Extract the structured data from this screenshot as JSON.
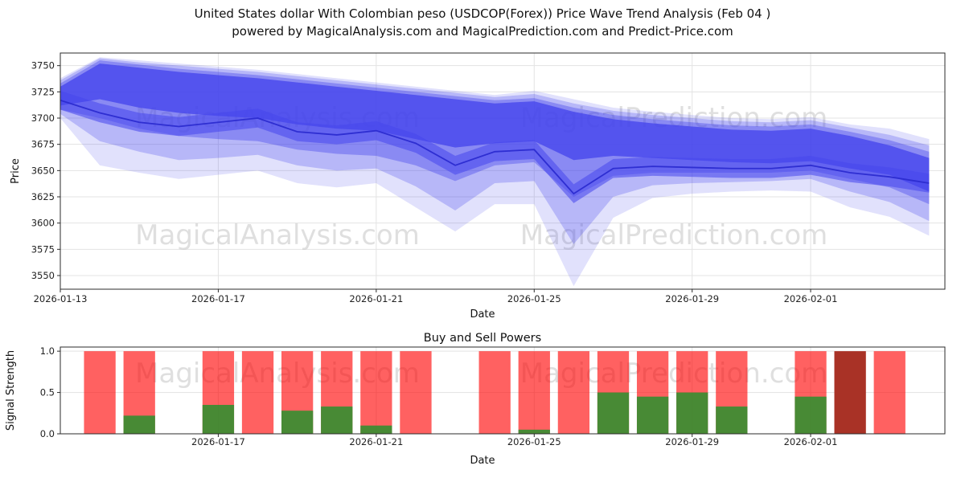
{
  "page": {
    "title_line1": "United States dollar With Colombian peso (USDCOP(Forex)) Price Wave Trend Analysis (Feb 04 )",
    "title_line2": "powered by MagicalAnalysis.com and MagicalPrediction.com and Predict-Price.com"
  },
  "watermarks": {
    "left": "MagicalAnalysis.com",
    "right": "MagicalPrediction.com"
  },
  "chart_data": [
    {
      "type": "area",
      "name": "price-wave-trend",
      "xlabel": "Date",
      "ylabel": "Price",
      "xlim_days": [
        0,
        22.4
      ],
      "ylim": [
        3537,
        3762
      ],
      "yticks": [
        3550,
        3575,
        3600,
        3625,
        3650,
        3675,
        3700,
        3725,
        3750
      ],
      "xticks": [
        "2026-01-13",
        "2026-01-17",
        "2026-01-21",
        "2026-01-25",
        "2026-01-29",
        "2026-02-01"
      ],
      "band_color": "#4646ec",
      "line_color": "#2b2bd0",
      "dates": [
        "2026-01-13",
        "2026-01-14",
        "2026-01-15",
        "2026-01-16",
        "2026-01-17",
        "2026-01-18",
        "2026-01-19",
        "2026-01-20",
        "2026-01-21",
        "2026-01-22",
        "2026-01-23",
        "2026-01-24",
        "2026-01-25",
        "2026-01-26",
        "2026-01-27",
        "2026-01-28",
        "2026-01-29",
        "2026-01-30",
        "2026-01-31",
        "2026-02-01",
        "2026-02-02",
        "2026-02-03",
        "2026-02-04"
      ],
      "median": [
        3717,
        3705,
        3696,
        3692,
        3696,
        3700,
        3687,
        3684,
        3688,
        3676,
        3655,
        3668,
        3670,
        3628,
        3652,
        3654,
        3653,
        3652,
        3652,
        3655,
        3648,
        3644,
        3638
      ],
      "bands": [
        {
          "name": "outer-faint",
          "opacity": 0.16,
          "upper": [
            3738,
            3758,
            3755,
            3752,
            3749,
            3746,
            3742,
            3738,
            3734,
            3730,
            3726,
            3722,
            3726,
            3718,
            3710,
            3706,
            3703,
            3700,
            3699,
            3701,
            3694,
            3690,
            3680
          ],
          "lower": [
            3700,
            3655,
            3648,
            3642,
            3646,
            3650,
            3638,
            3634,
            3638,
            3615,
            3592,
            3618,
            3618,
            3540,
            3605,
            3624,
            3628,
            3630,
            3631,
            3630,
            3615,
            3606,
            3588
          ]
        },
        {
          "name": "outer-light",
          "opacity": 0.27,
          "upper": [
            3736,
            3757,
            3753,
            3750,
            3747,
            3744,
            3740,
            3736,
            3732,
            3728,
            3724,
            3720,
            3723,
            3714,
            3707,
            3703,
            3700,
            3697,
            3696,
            3698,
            3691,
            3684,
            3674
          ],
          "lower": [
            3704,
            3678,
            3668,
            3660,
            3662,
            3665,
            3655,
            3650,
            3652,
            3635,
            3612,
            3638,
            3640,
            3580,
            3625,
            3636,
            3638,
            3639,
            3640,
            3642,
            3630,
            3620,
            3602
          ]
        },
        {
          "name": "mid",
          "opacity": 0.4,
          "upper": [
            3733,
            3755,
            3751,
            3747,
            3744,
            3741,
            3737,
            3733,
            3729,
            3725,
            3721,
            3717,
            3719,
            3710,
            3703,
            3699,
            3696,
            3693,
            3692,
            3694,
            3687,
            3679,
            3668
          ],
          "lower": [
            3708,
            3700,
            3690,
            3683,
            3680,
            3678,
            3670,
            3666,
            3664,
            3655,
            3640,
            3655,
            3658,
            3625,
            3645,
            3648,
            3648,
            3648,
            3648,
            3650,
            3642,
            3634,
            3618
          ]
        },
        {
          "name": "median-core",
          "opacity": 0.55,
          "upper": [
            3726,
            3714,
            3705,
            3701,
            3705,
            3709,
            3696,
            3693,
            3697,
            3685,
            3664,
            3677,
            3679,
            3637,
            3661,
            3663,
            3662,
            3661,
            3661,
            3664,
            3657,
            3653,
            3647
          ],
          "lower": [
            3708,
            3696,
            3687,
            3683,
            3687,
            3691,
            3678,
            3675,
            3679,
            3667,
            3646,
            3659,
            3661,
            3619,
            3643,
            3645,
            3644,
            3643,
            3643,
            3646,
            3639,
            3635,
            3629
          ]
        },
        {
          "name": "upper-core",
          "opacity": 0.8,
          "upper": [
            3730,
            3752,
            3748,
            3744,
            3741,
            3738,
            3734,
            3730,
            3726,
            3722,
            3718,
            3714,
            3716,
            3706,
            3699,
            3695,
            3692,
            3689,
            3688,
            3690,
            3683,
            3674,
            3662
          ],
          "lower": [
            3712,
            3718,
            3710,
            3705,
            3702,
            3700,
            3694,
            3690,
            3688,
            3680,
            3672,
            3676,
            3678,
            3660,
            3664,
            3662,
            3660,
            3658,
            3657,
            3659,
            3652,
            3646,
            3630
          ]
        }
      ]
    },
    {
      "type": "bar",
      "name": "buy-sell-powers",
      "title": "Buy and Sell Powers",
      "xlabel": "Date",
      "ylabel": "Signal Strength",
      "xlim_days": [
        0,
        22.4
      ],
      "ylim": [
        0,
        1.05
      ],
      "yticks": [
        0.0,
        0.5,
        1.0
      ],
      "xticks": [
        "2026-01-17",
        "2026-01-21",
        "2026-01-25",
        "2026-01-29",
        "2026-02-01"
      ],
      "bar_width_days": 0.8,
      "colors": {
        "sell": "#ff0000",
        "buy": "#2f8f2f",
        "sell_dark": "#a93226"
      },
      "bars": [
        {
          "date": "2026-01-14",
          "sell": 1.0,
          "buy": 0
        },
        {
          "date": "2026-01-15",
          "sell": 1.0,
          "buy": 0.22
        },
        {
          "date": "2026-01-17",
          "sell": 1.0,
          "buy": 0.35
        },
        {
          "date": "2026-01-18",
          "sell": 1.0,
          "buy": 0
        },
        {
          "date": "2026-01-19",
          "sell": 1.0,
          "buy": 0.28
        },
        {
          "date": "2026-01-20",
          "sell": 1.0,
          "buy": 0.33
        },
        {
          "date": "2026-01-21",
          "sell": 1.0,
          "buy": 0.1
        },
        {
          "date": "2026-01-22",
          "sell": 1.0,
          "buy": 0
        },
        {
          "date": "2026-01-24",
          "sell": 1.0,
          "buy": 0
        },
        {
          "date": "2026-01-25",
          "sell": 1.0,
          "buy": 0.05
        },
        {
          "date": "2026-01-26",
          "sell": 1.0,
          "buy": 0
        },
        {
          "date": "2026-01-27",
          "sell": 1.0,
          "buy": 0.5
        },
        {
          "date": "2026-01-28",
          "sell": 1.0,
          "buy": 0.45
        },
        {
          "date": "2026-01-29",
          "sell": 1.0,
          "buy": 0.5
        },
        {
          "date": "2026-01-30",
          "sell": 1.0,
          "buy": 0.33
        },
        {
          "date": "2026-02-01",
          "sell": 1.0,
          "buy": 0.45
        },
        {
          "date": "2026-02-02",
          "sell": 1.0,
          "buy": 0,
          "variant": "dark"
        },
        {
          "date": "2026-02-03",
          "sell": 1.0,
          "buy": 0
        }
      ]
    }
  ]
}
